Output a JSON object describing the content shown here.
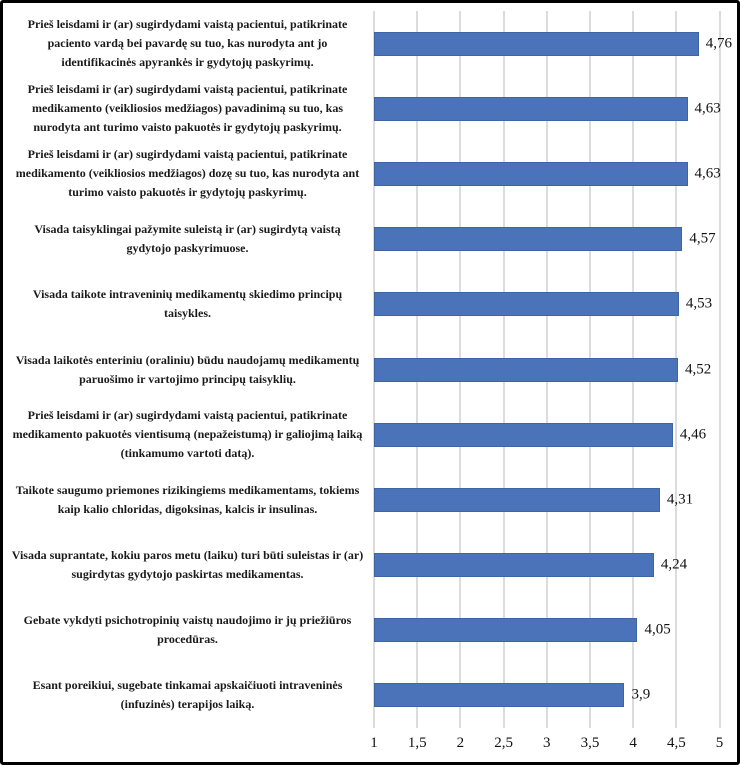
{
  "chart_data": {
    "type": "bar",
    "orientation": "horizontal",
    "title": "",
    "xlabel": "",
    "ylabel": "",
    "legend": null,
    "grid": true,
    "xlim": [
      1,
      5
    ],
    "xticks": [
      1,
      1.5,
      2,
      2.5,
      3,
      3.5,
      4,
      4.5,
      5
    ],
    "xtick_labels": [
      "1",
      "1,5",
      "2",
      "2,5",
      "3",
      "3,5",
      "4",
      "4,5",
      "5"
    ],
    "categories": [
      "Prieš leisdami ir (ar) sugirdydami vaistą pacientui, patikrinate paciento vardą bei pavardę su tuo, kas nurodyta ant jo identifikacinės apyrankės ir gydytojų paskyrimų.",
      "Prieš leisdami ir (ar) sugirdydami vaistą pacientui, patikrinate medikamento (veikliosios  medžiagos) pavadinimą su tuo, kas nurodyta ant turimo vaisto pakuotės ir gydytojų paskyrimų.",
      "Prieš leisdami ir (ar) sugirdydami vaistą pacientui, patikrinate medikamento (veikliosios  medžiagos) dozę su tuo, kas nurodyta ant turimo vaisto pakuotės ir gydytojų paskyrimų.",
      "Visada taisyklingai pažymite suleistą ir (ar) sugirdytą vaistą gydytojo paskyrimuose.",
      "Visada taikote intraveninių medikamentų  skiedimo principų taisykles.",
      "Visada laikotės enteriniu (oraliniu) būdu naudojamų medikamentų paruošimo ir vartojimo principų taisyklių.",
      "Prieš leisdami ir (ar) sugirdydami vaistą pacientui, patikrinate medikamento pakuotės vientisumą (nepažeistumą) ir galiojimą laiką (tinkamumo vartoti datą).",
      "Taikote saugumo priemones rizikingiems medikamentams, tokiems kaip kalio chloridas, digoksinas, kalcis ir insulinas.",
      "Visada suprantate, kokiu paros metu (laiku) turi būti suleistas ir (ar) sugirdytas gydytojo paskirtas medikamentas.",
      "Gebate vykdyti psichotropinių vaistų naudojimo ir jų priežiūros procedūras.",
      "Esant poreikiui, sugebate tinkamai apskaičiuoti  intraveninės (infuzinės) terapijos laiką."
    ],
    "values": [
      4.76,
      4.63,
      4.63,
      4.57,
      4.53,
      4.52,
      4.46,
      4.31,
      4.24,
      4.05,
      3.9
    ],
    "value_labels": [
      "4,76",
      "4,63",
      "4,63",
      "4,57",
      "4,53",
      "4,52",
      "4,46",
      "4,31",
      "4,24",
      "4,05",
      "3,9"
    ],
    "colors": {
      "bar": "#4A73B9",
      "bar_border": "#3E64A4",
      "gridline": "#DCDCDC",
      "frame_border": "#000000",
      "text": "#1a1a1a"
    }
  }
}
